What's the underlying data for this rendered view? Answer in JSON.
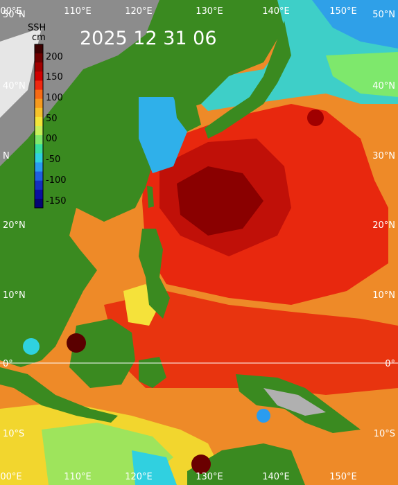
{
  "title": "2025 12 31 06",
  "colorbar": {
    "heading_1": "SSH",
    "heading_2": "cm",
    "ticks": [
      "200",
      "150",
      "100",
      "50",
      "00",
      "-50",
      "-100",
      "-150"
    ],
    "colors": [
      "#3d0000",
      "#6e0000",
      "#a00000",
      "#d00000",
      "#f02810",
      "#f76a14",
      "#f79a1e",
      "#f7c32a",
      "#f4e63a",
      "#c8f05a",
      "#7fe86c",
      "#38e0a0",
      "#2fd2e0",
      "#2a9cf0",
      "#2060e0",
      "#1430c0",
      "#0a10a0",
      "#050575"
    ]
  },
  "lon_labels_top": [
    "00°E",
    "110°E",
    "120°E",
    "130°E",
    "140°E",
    "150°E"
  ],
  "lon_labels_bottom": [
    "00°E",
    "110°E",
    "120°E",
    "130°E",
    "140°E",
    "150°E"
  ],
  "lat_labels_left": [
    "50°N",
    "40°N",
    "N",
    "20°N",
    "10°N",
    "0°",
    "10°S"
  ],
  "lat_labels_right": [
    "50°N",
    "40°N",
    "30°N",
    "20°N",
    "10°N",
    "0°",
    "10°S"
  ],
  "colors": {
    "ocean_high": "#e0200c",
    "ocean_peak": "#8a0000",
    "ocean_mid": "#f07a1a",
    "land": "#3a8a20",
    "mountain": "#8c8c8c",
    "cold": "#30d0ff"
  }
}
